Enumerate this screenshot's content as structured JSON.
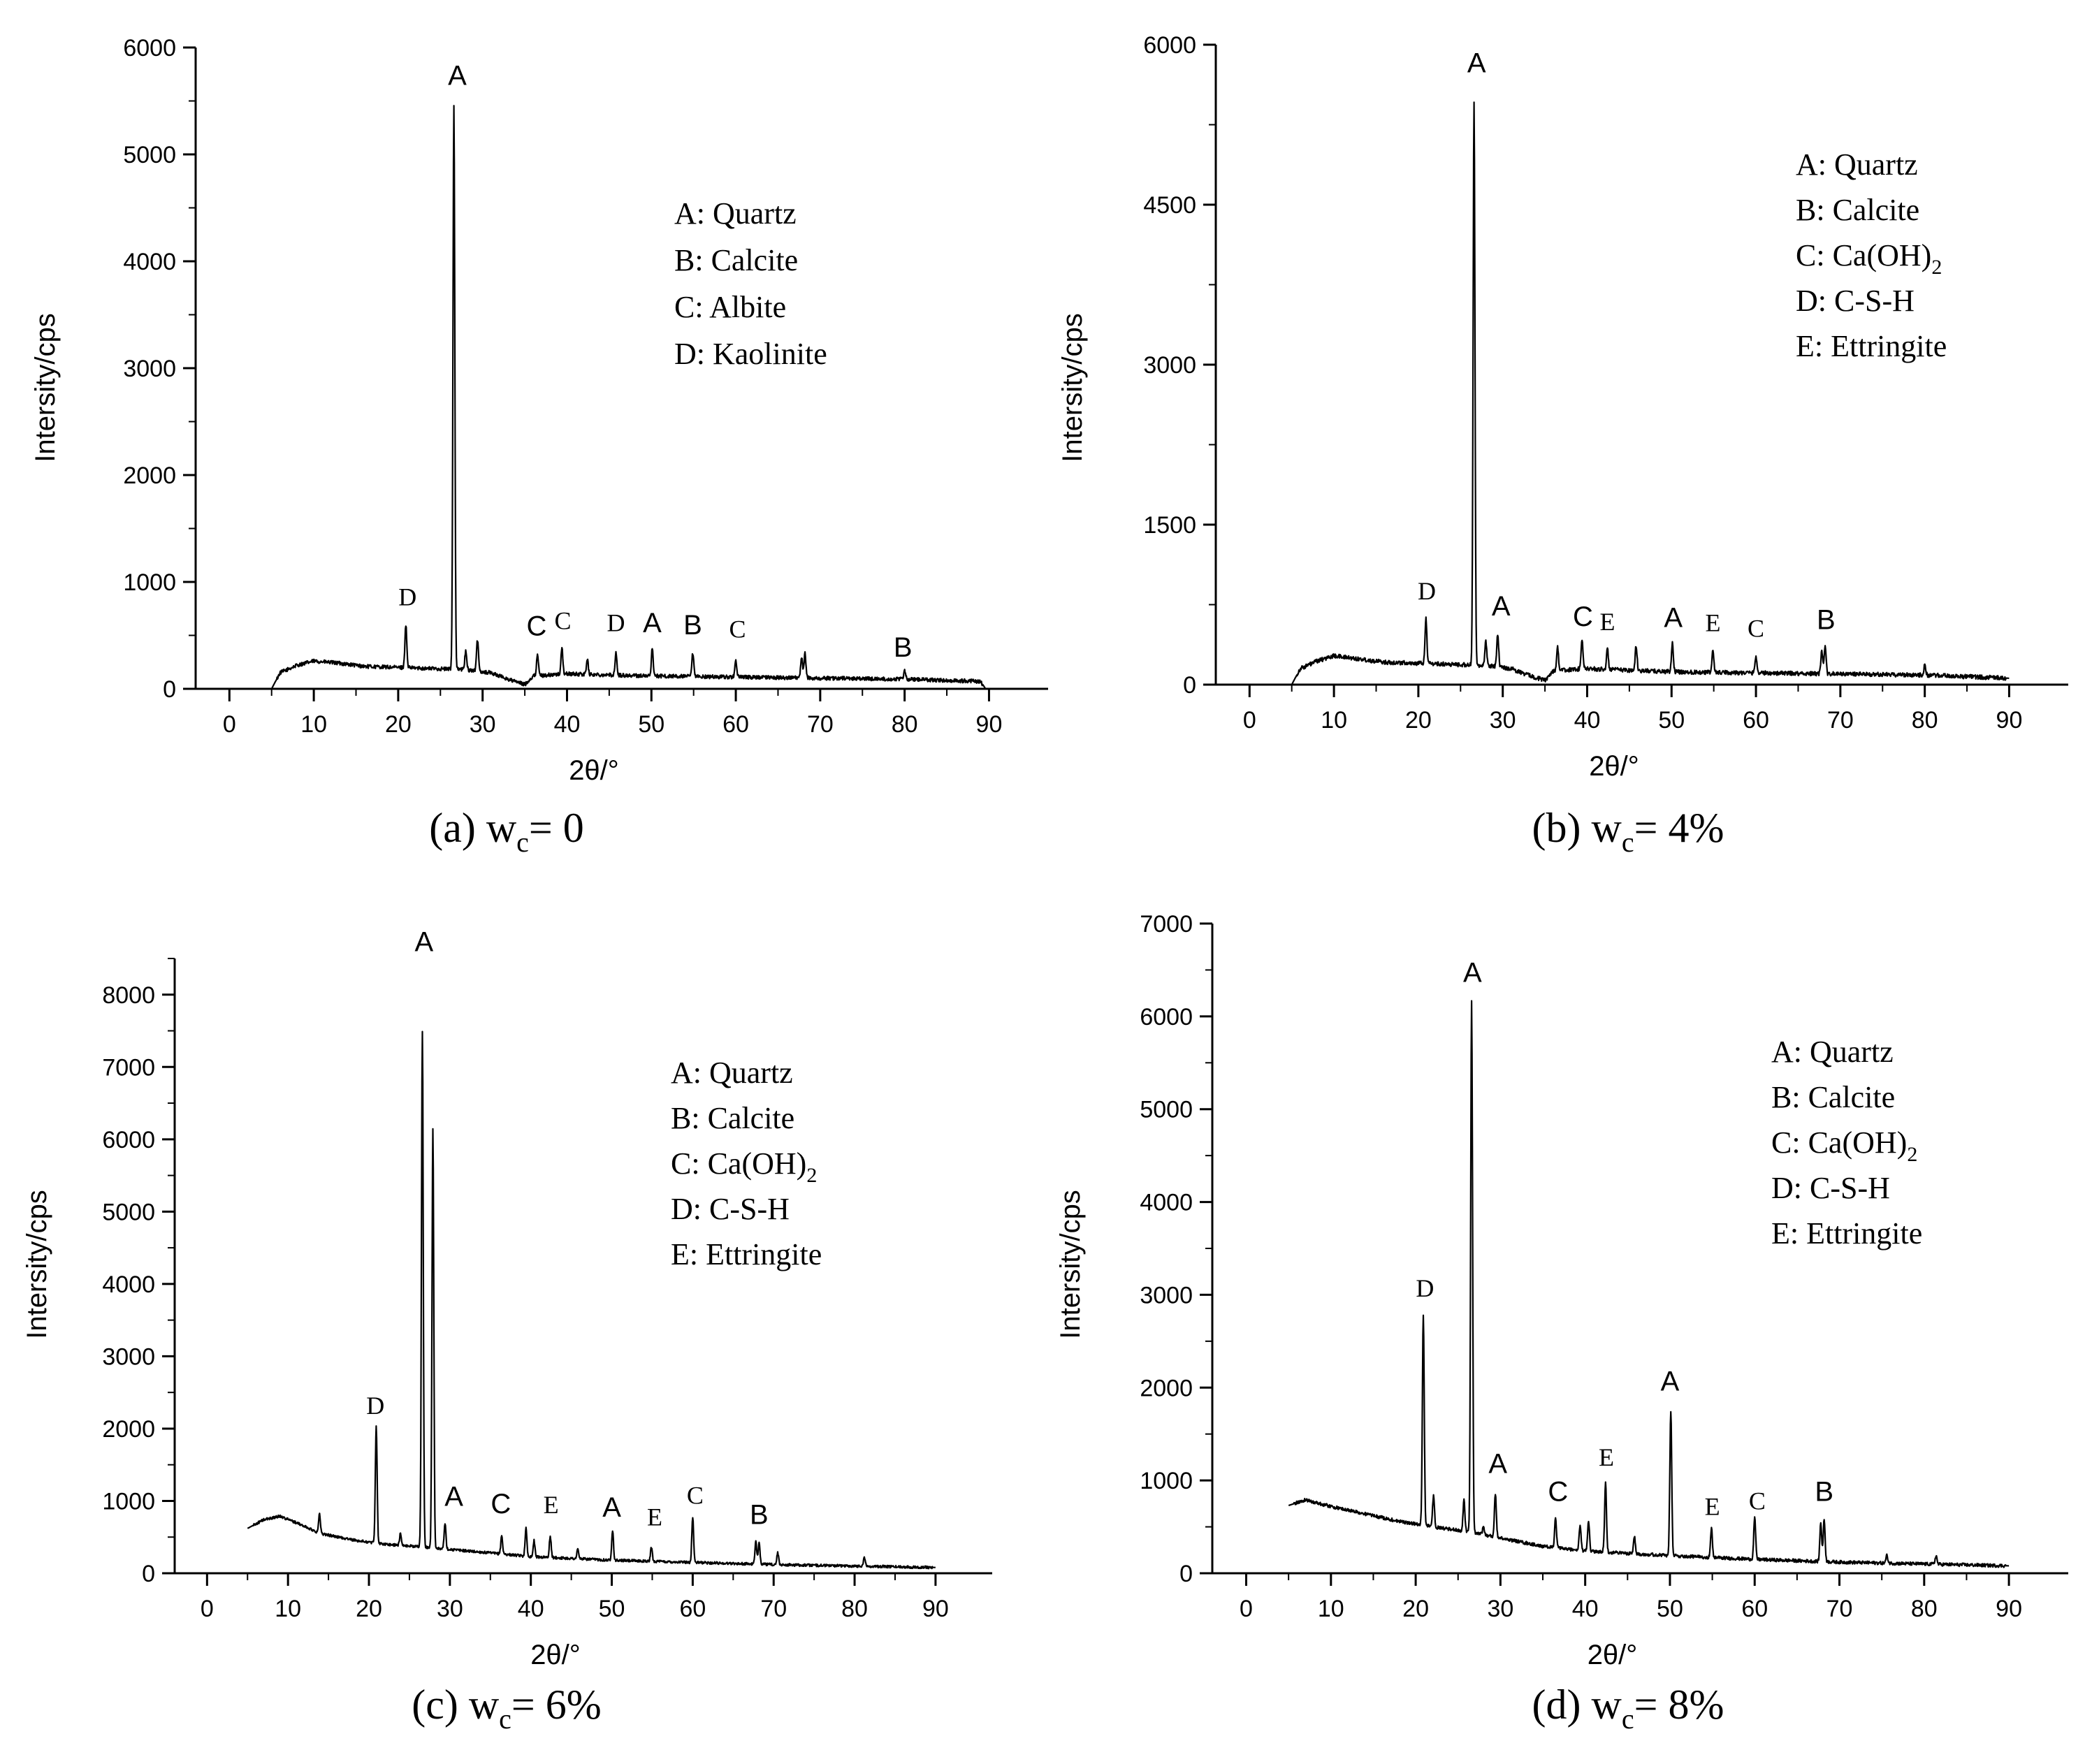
{
  "chart_data": [
    {
      "type": "line",
      "caption": "(a) w",
      "caption_sub": "c",
      "caption_value": "= 0",
      "xlabel": "2θ/°",
      "ylabel": "Intersity/cps",
      "xlim": [
        -4,
        97
      ],
      "ylim": [
        0,
        6000
      ],
      "xticks": [
        0,
        10,
        20,
        30,
        40,
        50,
        60,
        70,
        80,
        90
      ],
      "yticks": [
        0,
        1000,
        2000,
        3000,
        4000,
        5000,
        6000
      ],
      "baseline": [
        [
          5,
          0
        ],
        [
          6,
          150
        ],
        [
          8,
          220
        ],
        [
          10,
          260
        ],
        [
          13,
          240
        ],
        [
          16,
          210
        ],
        [
          20,
          200
        ],
        [
          24,
          190
        ],
        [
          28,
          180
        ],
        [
          31,
          150
        ],
        [
          33,
          90
        ],
        [
          35,
          40
        ],
        [
          36,
          120
        ],
        [
          40,
          140
        ],
        [
          50,
          120
        ],
        [
          60,
          110
        ],
        [
          70,
          100
        ],
        [
          80,
          90
        ],
        [
          89,
          70
        ],
        [
          89.6,
          0
        ]
      ],
      "noise": 18,
      "peaks": [
        {
          "x": 20.9,
          "y": 600
        },
        {
          "x": 26.6,
          "y": 5450
        },
        {
          "x": 28.0,
          "y": 350
        },
        {
          "x": 29.4,
          "y": 460
        },
        {
          "x": 36.5,
          "y": 330
        },
        {
          "x": 39.4,
          "y": 380
        },
        {
          "x": 42.4,
          "y": 280
        },
        {
          "x": 45.8,
          "y": 330
        },
        {
          "x": 50.1,
          "y": 380
        },
        {
          "x": 54.9,
          "y": 330
        },
        {
          "x": 60.0,
          "y": 270
        },
        {
          "x": 67.8,
          "y": 300
        },
        {
          "x": 68.2,
          "y": 330
        },
        {
          "x": 80.0,
          "y": 170
        }
      ],
      "peak_labels": [
        {
          "x": 21.1,
          "y": 780,
          "text": "D",
          "font": "serif"
        },
        {
          "x": 27.0,
          "y": 5650,
          "text": "A",
          "font": "sans"
        },
        {
          "x": 36.4,
          "y": 500,
          "text": "C",
          "font": "sans"
        },
        {
          "x": 39.5,
          "y": 560,
          "text": "C",
          "font": "serif"
        },
        {
          "x": 45.8,
          "y": 540,
          "text": "D",
          "font": "serif"
        },
        {
          "x": 50.1,
          "y": 530,
          "text": "A",
          "font": "sans"
        },
        {
          "x": 54.9,
          "y": 510,
          "text": "B",
          "font": "sans"
        },
        {
          "x": 60.2,
          "y": 480,
          "text": "C",
          "font": "serif"
        },
        {
          "x": 79.8,
          "y": 300,
          "text": "B",
          "font": "sans"
        }
      ],
      "legend": {
        "lines": [
          [
            "A: Quartz"
          ],
          [
            "B: Calcite"
          ],
          [
            "C: Albite"
          ],
          [
            "D: Kaolinite"
          ]
        ]
      }
    },
    {
      "type": "line",
      "caption": "(b) w",
      "caption_sub": "c",
      "caption_value": "= 4%",
      "xlabel": "2θ/°",
      "ylabel": "Intersity/cps",
      "xlim": [
        -4,
        97
      ],
      "ylim": [
        0,
        6000
      ],
      "xticks": [
        0,
        10,
        20,
        30,
        40,
        50,
        60,
        70,
        80,
        90
      ],
      "yticks": [
        0,
        1500,
        3000,
        4500,
        6000
      ],
      "baseline": [
        [
          5,
          0
        ],
        [
          6,
          150
        ],
        [
          8,
          220
        ],
        [
          10,
          270
        ],
        [
          13,
          240
        ],
        [
          16,
          210
        ],
        [
          20,
          200
        ],
        [
          24,
          190
        ],
        [
          28,
          180
        ],
        [
          31,
          150
        ],
        [
          33,
          90
        ],
        [
          35,
          40
        ],
        [
          36,
          130
        ],
        [
          40,
          150
        ],
        [
          50,
          120
        ],
        [
          60,
          110
        ],
        [
          70,
          100
        ],
        [
          80,
          90
        ],
        [
          90,
          60
        ]
      ],
      "noise": 20,
      "peaks": [
        {
          "x": 20.9,
          "y": 620
        },
        {
          "x": 26.6,
          "y": 5450
        },
        {
          "x": 28.0,
          "y": 400
        },
        {
          "x": 29.4,
          "y": 480
        },
        {
          "x": 36.5,
          "y": 350
        },
        {
          "x": 39.4,
          "y": 420
        },
        {
          "x": 42.4,
          "y": 330
        },
        {
          "x": 45.8,
          "y": 360
        },
        {
          "x": 50.1,
          "y": 390
        },
        {
          "x": 54.9,
          "y": 320
        },
        {
          "x": 60.0,
          "y": 270
        },
        {
          "x": 67.8,
          "y": 310
        },
        {
          "x": 68.2,
          "y": 350
        },
        {
          "x": 80.0,
          "y": 180
        }
      ],
      "peak_labels": [
        {
          "x": 21.0,
          "y": 800,
          "text": "D",
          "font": "serif"
        },
        {
          "x": 26.9,
          "y": 5740,
          "text": "A",
          "font": "sans"
        },
        {
          "x": 29.8,
          "y": 650,
          "text": "A",
          "font": "sans"
        },
        {
          "x": 39.5,
          "y": 550,
          "text": "C",
          "font": "sans"
        },
        {
          "x": 42.4,
          "y": 510,
          "text": "E",
          "font": "serif"
        },
        {
          "x": 50.2,
          "y": 540,
          "text": "A",
          "font": "sans"
        },
        {
          "x": 54.9,
          "y": 500,
          "text": "E",
          "font": "serif"
        },
        {
          "x": 60.0,
          "y": 450,
          "text": "C",
          "font": "serif"
        },
        {
          "x": 68.3,
          "y": 520,
          "text": "B",
          "font": "sans"
        }
      ],
      "legend": {
        "lines": [
          [
            "A: Quartz"
          ],
          [
            "B: Calcite"
          ],
          [
            "C: Ca(OH)",
            "2"
          ],
          [
            "D: C-S-H"
          ],
          [
            "E: Ettringite"
          ]
        ]
      }
    },
    {
      "type": "line",
      "caption": "(c) w",
      "caption_sub": "c",
      "caption_value": "= 6%",
      "xlabel": "2θ/°",
      "ylabel": "Intersity/cps",
      "xlim": [
        -4,
        97
      ],
      "ylim": [
        0,
        8500
      ],
      "xticks": [
        0,
        10,
        20,
        30,
        40,
        50,
        60,
        70,
        80,
        90
      ],
      "yticks": [
        0,
        1000,
        2000,
        3000,
        4000,
        5000,
        6000,
        7000,
        8000
      ],
      "baseline": [
        [
          5,
          620
        ],
        [
          7,
          740
        ],
        [
          9,
          790
        ],
        [
          11,
          700
        ],
        [
          14,
          550
        ],
        [
          18,
          460
        ],
        [
          22,
          400
        ],
        [
          26,
          370
        ],
        [
          30,
          330
        ],
        [
          35,
          280
        ],
        [
          40,
          230
        ],
        [
          50,
          180
        ],
        [
          60,
          150
        ],
        [
          70,
          120
        ],
        [
          80,
          100
        ],
        [
          90,
          80
        ]
      ],
      "noise": 18,
      "peaks": [
        {
          "x": 13.9,
          "y": 820
        },
        {
          "x": 20.9,
          "y": 2050
        },
        {
          "x": 23.9,
          "y": 550
        },
        {
          "x": 26.6,
          "y": 7500
        },
        {
          "x": 27.9,
          "y": 6150
        },
        {
          "x": 29.4,
          "y": 690
        },
        {
          "x": 36.4,
          "y": 520
        },
        {
          "x": 39.4,
          "y": 620
        },
        {
          "x": 40.4,
          "y": 450
        },
        {
          "x": 42.4,
          "y": 510
        },
        {
          "x": 45.8,
          "y": 330
        },
        {
          "x": 50.1,
          "y": 600
        },
        {
          "x": 54.9,
          "y": 360
        },
        {
          "x": 60.0,
          "y": 780
        },
        {
          "x": 67.8,
          "y": 430
        },
        {
          "x": 68.2,
          "y": 440
        },
        {
          "x": 70.5,
          "y": 280
        },
        {
          "x": 81.2,
          "y": 220
        }
      ],
      "peak_labels": [
        {
          "x": 20.8,
          "y": 2200,
          "text": "D",
          "font": "serif"
        },
        {
          "x": 26.8,
          "y": 8600,
          "text": "A",
          "font": "sans"
        },
        {
          "x": 30.5,
          "y": 930,
          "text": "A",
          "font": "sans"
        },
        {
          "x": 36.3,
          "y": 830,
          "text": "C",
          "font": "sans"
        },
        {
          "x": 42.5,
          "y": 830,
          "text": "E",
          "font": "serif"
        },
        {
          "x": 50.0,
          "y": 780,
          "text": "A",
          "font": "sans"
        },
        {
          "x": 55.3,
          "y": 660,
          "text": "E",
          "font": "serif"
        },
        {
          "x": 60.3,
          "y": 960,
          "text": "C",
          "font": "serif"
        },
        {
          "x": 68.2,
          "y": 680,
          "text": "B",
          "font": "sans"
        }
      ],
      "legend": {
        "lines": [
          [
            "A: Quartz"
          ],
          [
            "B: Calcite"
          ],
          [
            "C: Ca(OH)",
            "2"
          ],
          [
            "D: C-S-H"
          ],
          [
            "E: Ettringite"
          ]
        ]
      }
    },
    {
      "type": "line",
      "caption": "(d) w",
      "caption_sub": "c",
      "caption_value": "= 8%",
      "xlabel": "2θ/°",
      "ylabel": "Intersity/cps",
      "xlim": [
        -4,
        97
      ],
      "ylim": [
        0,
        7000
      ],
      "xticks": [
        0,
        10,
        20,
        30,
        40,
        50,
        60,
        70,
        80,
        90
      ],
      "yticks": [
        0,
        1000,
        2000,
        3000,
        4000,
        5000,
        6000,
        7000
      ],
      "baseline": [
        [
          5,
          730
        ],
        [
          7,
          790
        ],
        [
          10,
          720
        ],
        [
          14,
          640
        ],
        [
          18,
          560
        ],
        [
          22,
          500
        ],
        [
          26,
          450
        ],
        [
          30,
          380
        ],
        [
          35,
          290
        ],
        [
          40,
          240
        ],
        [
          50,
          190
        ],
        [
          60,
          150
        ],
        [
          70,
          120
        ],
        [
          80,
          100
        ],
        [
          90,
          80
        ]
      ],
      "noise": 18,
      "peaks": [
        {
          "x": 20.9,
          "y": 2780
        },
        {
          "x": 22.1,
          "y": 830
        },
        {
          "x": 25.7,
          "y": 790
        },
        {
          "x": 26.6,
          "y": 6150
        },
        {
          "x": 28.0,
          "y": 500
        },
        {
          "x": 29.4,
          "y": 860
        },
        {
          "x": 36.5,
          "y": 600
        },
        {
          "x": 39.4,
          "y": 520
        },
        {
          "x": 40.4,
          "y": 560
        },
        {
          "x": 42.4,
          "y": 980
        },
        {
          "x": 45.8,
          "y": 400
        },
        {
          "x": 50.1,
          "y": 1750
        },
        {
          "x": 54.9,
          "y": 480
        },
        {
          "x": 60.0,
          "y": 600
        },
        {
          "x": 67.8,
          "y": 540
        },
        {
          "x": 68.2,
          "y": 580
        },
        {
          "x": 75.6,
          "y": 190
        },
        {
          "x": 81.4,
          "y": 190
        }
      ],
      "peak_labels": [
        {
          "x": 21.1,
          "y": 2980,
          "text": "D",
          "font": "serif"
        },
        {
          "x": 26.7,
          "y": 6370,
          "text": "A",
          "font": "sans"
        },
        {
          "x": 29.7,
          "y": 1080,
          "text": "A",
          "font": "sans"
        },
        {
          "x": 36.8,
          "y": 780,
          "text": "C",
          "font": "sans"
        },
        {
          "x": 42.5,
          "y": 1160,
          "text": "E",
          "font": "serif"
        },
        {
          "x": 50.0,
          "y": 1970,
          "text": "A",
          "font": "sans"
        },
        {
          "x": 55.0,
          "y": 630,
          "text": "E",
          "font": "serif"
        },
        {
          "x": 60.3,
          "y": 690,
          "text": "C",
          "font": "serif"
        },
        {
          "x": 68.2,
          "y": 780,
          "text": "B",
          "font": "sans"
        }
      ],
      "legend": {
        "lines": [
          [
            "A: Quartz"
          ],
          [
            "B: Calcite"
          ],
          [
            "C: Ca(OH)",
            "2"
          ],
          [
            "D: C-S-H"
          ],
          [
            "E: Ettringite"
          ]
        ]
      }
    }
  ]
}
